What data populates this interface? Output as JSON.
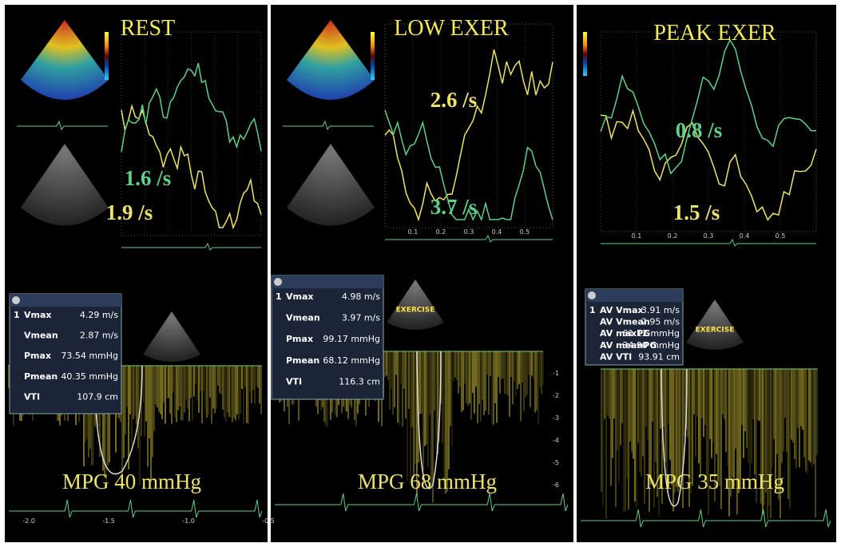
{
  "panels": [
    {
      "title": "REST",
      "strain_rates": [
        "1.6 /s",
        "1.9 /s"
      ],
      "measurements": {
        "index": "1",
        "rows": [
          [
            "Vmax",
            "4.29 m/s"
          ],
          [
            "Vmean",
            "2.87 m/s"
          ],
          [
            "Pmax",
            "73.54 mmHg"
          ],
          [
            "Pmean",
            "40.35 mmHg"
          ],
          [
            "VTI",
            "107.9 cm"
          ]
        ]
      },
      "gradient": "MPG 40 mmHg",
      "time_ticks": [
        "-2.0",
        "-1.5",
        "-1.0",
        "-0.5"
      ]
    },
    {
      "title": "LOW EXER",
      "strain_rates": [
        "2.6 /s",
        "3.7 /s"
      ],
      "measurements": {
        "index": "1",
        "rows": [
          [
            "Vmax",
            "4.98 m/s"
          ],
          [
            "Vmean",
            "3.97 m/s"
          ],
          [
            "Pmax",
            "99.17 mmHg"
          ],
          [
            "Pmean",
            "68.12 mmHg"
          ],
          [
            "VTI",
            "116.3 cm"
          ]
        ]
      },
      "sector_label": "EXERCISE",
      "gradient": "MPG 68 mmHg",
      "strain_ticks": [
        "0.1",
        "0.2",
        "0.3",
        "0.4",
        "0.5"
      ],
      "depth_ticks": [
        "-1",
        "-2",
        "-3",
        "-4",
        "-5",
        "-6"
      ]
    },
    {
      "title": "PEAK EXER",
      "strain_rates": [
        "0.8 /s",
        "1.5 /s"
      ],
      "measurements": {
        "index": "1",
        "rows": [
          [
            "AV Vmax",
            "3.91 m/s"
          ],
          [
            "AV Vmean",
            "2.95 m/s"
          ],
          [
            "AV maxPG",
            "61.12 mmHg"
          ],
          [
            "AV meanPG",
            "34.90 mmHg"
          ],
          [
            "AV VTI",
            "93.91 cm"
          ]
        ]
      },
      "sector_label": "EXERCISE",
      "gradient": "MPG 35 mmHg",
      "strain_ticks": [
        "0.1",
        "0.2",
        "0.3",
        "0.4",
        "0.5"
      ]
    }
  ]
}
